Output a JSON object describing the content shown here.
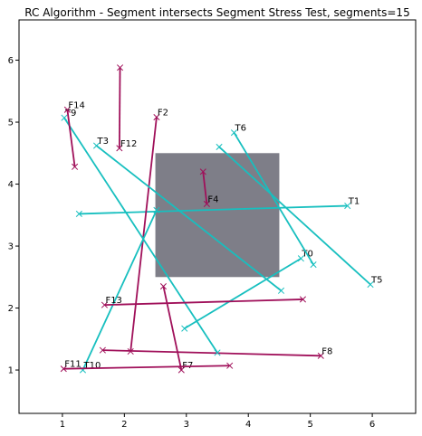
{
  "chart_data": {
    "type": "line",
    "title": "RC Algorithm - Segment intersects Segment Stress Test, segments=15",
    "xlabel": "",
    "ylabel": "",
    "xlim": [
      0.3,
      6.7
    ],
    "ylim": [
      0.3,
      6.65
    ],
    "xticks": [
      1,
      2,
      3,
      4,
      5,
      6
    ],
    "yticks": [
      1,
      2,
      3,
      4,
      5,
      6
    ],
    "grid": false,
    "colors": {
      "true": "#17bfbf",
      "false": "#a0105a",
      "rect_fill": "#5a5a66",
      "axes": "#000000"
    },
    "rectangle": {
      "x1": 2.5,
      "y1": 2.5,
      "x2": 4.5,
      "y2": 4.5,
      "opacity": 0.78
    },
    "segments": [
      {
        "name": "T0",
        "intersects": true,
        "start": [
          4.85,
          2.8
        ],
        "end": [
          2.97,
          1.67
        ]
      },
      {
        "name": "T1",
        "intersects": true,
        "start": [
          5.6,
          3.65
        ],
        "end": [
          1.27,
          3.52
        ]
      },
      {
        "name": "F2",
        "intersects": false,
        "start": [
          2.52,
          5.08
        ],
        "end": [
          2.1,
          1.3
        ]
      },
      {
        "name": "T3",
        "intersects": true,
        "start": [
          1.55,
          4.62
        ],
        "end": [
          4.53,
          2.28
        ]
      },
      {
        "name": "F4",
        "intersects": false,
        "start": [
          3.33,
          3.68
        ],
        "end": [
          3.27,
          4.2
        ]
      },
      {
        "name": "T5",
        "intersects": true,
        "start": [
          5.97,
          2.38
        ],
        "end": [
          3.53,
          4.6
        ]
      },
      {
        "name": "T6",
        "intersects": true,
        "start": [
          3.77,
          4.83
        ],
        "end": [
          5.05,
          2.7
        ]
      },
      {
        "name": "F7",
        "intersects": false,
        "start": [
          2.92,
          1.0
        ],
        "end": [
          2.63,
          2.35
        ]
      },
      {
        "name": "F8",
        "intersects": false,
        "start": [
          5.17,
          1.23
        ],
        "end": [
          1.65,
          1.32
        ]
      },
      {
        "name": "T9",
        "intersects": true,
        "start": [
          1.03,
          5.07
        ],
        "end": [
          3.5,
          1.28
        ]
      },
      {
        "name": "T10",
        "intersects": true,
        "start": [
          1.33,
          1.0
        ],
        "end": [
          2.52,
          3.58
        ]
      },
      {
        "name": "F11",
        "intersects": false,
        "start": [
          1.02,
          1.02
        ],
        "end": [
          3.7,
          1.07
        ]
      },
      {
        "name": "F12",
        "intersects": false,
        "start": [
          1.92,
          4.58
        ],
        "end": [
          1.93,
          5.88
        ]
      },
      {
        "name": "F13",
        "intersects": false,
        "start": [
          1.68,
          2.05
        ],
        "end": [
          4.88,
          2.14
        ]
      },
      {
        "name": "F14",
        "intersects": false,
        "start": [
          1.08,
          5.2
        ],
        "end": [
          1.2,
          4.28
        ]
      }
    ]
  }
}
